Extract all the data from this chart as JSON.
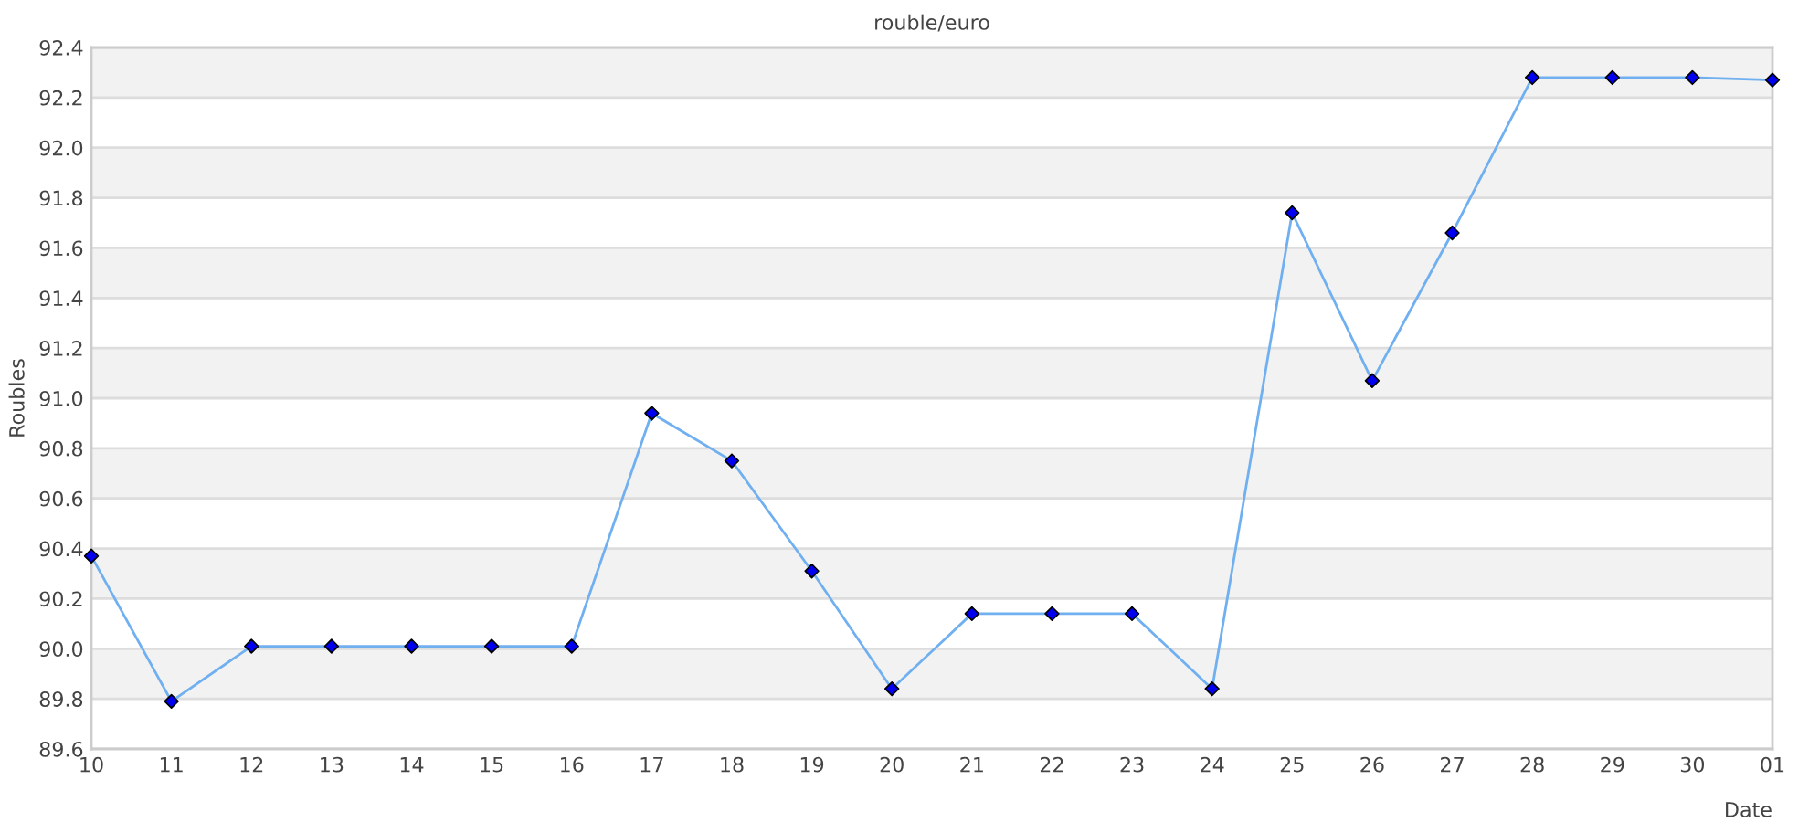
{
  "chart_data": {
    "type": "line",
    "title": "rouble/euro",
    "xlabel": "Date",
    "ylabel": "Roubles",
    "categories": [
      "10",
      "11",
      "12",
      "13",
      "14",
      "15",
      "16",
      "17",
      "18",
      "19",
      "20",
      "21",
      "22",
      "23",
      "24",
      "25",
      "26",
      "27",
      "28",
      "29",
      "30",
      "01"
    ],
    "series": [
      {
        "color": "#70b0f0",
        "colors": [
          "#0000ee",
          "#0000ee",
          "#0000ee",
          "#0000ee",
          "#0000ee",
          "#0000ee",
          "#0000ee",
          "#0000ee",
          "#0000ee",
          "#0000ee",
          "#0000ee",
          "#0000ee",
          "#0000ee",
          "#0000ee",
          "#0000ee",
          "#0000ee",
          "#0000ee",
          "#0000ee",
          "#0000ee",
          "#0000ee",
          "#0000ee",
          "#0000ee"
        ],
        "values": [
          90.37,
          89.79,
          90.01,
          90.01,
          90.01,
          90.01,
          90.01,
          90.94,
          90.75,
          90.31,
          89.84,
          90.14,
          90.14,
          90.14,
          89.84,
          91.74,
          91.07,
          91.66,
          92.28,
          92.28,
          92.28,
          92.27
        ]
      }
    ],
    "ylim": [
      89.6,
      92.4
    ],
    "yticks": [
      89.6,
      89.8,
      {
        "value": 90.0,
        "label": "90.0"
      },
      90.2,
      90.4,
      90.6,
      90.8,
      {
        "value": 91.0,
        "label": "91.0"
      },
      91.2,
      91.4,
      91.6,
      91.8,
      {
        "value": 92.0,
        "label": "92.0"
      },
      92.2,
      92.4
    ],
    "grid": "y",
    "marker": "diamond",
    "line_style": "solid"
  }
}
